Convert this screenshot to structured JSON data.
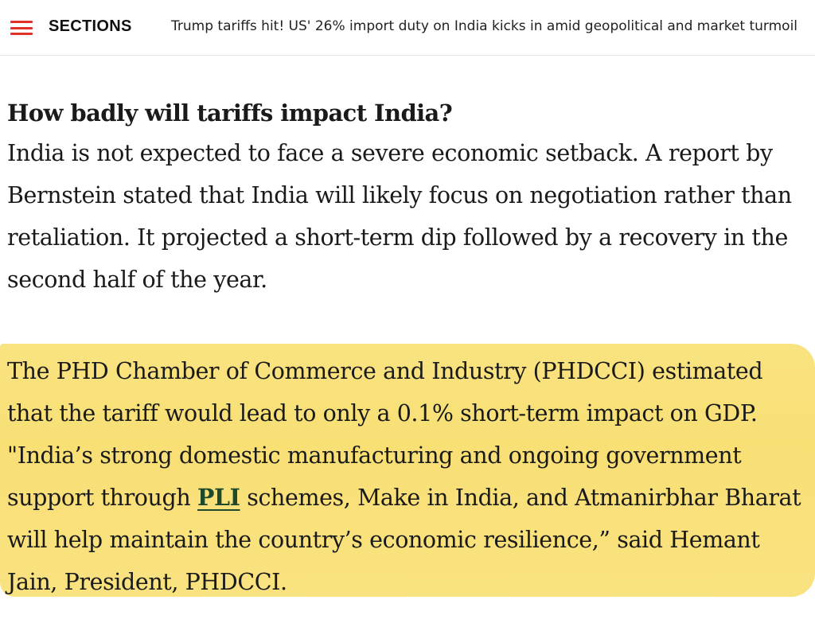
{
  "header": {
    "menu_icon": "hamburger-menu-icon",
    "sections_label": "SECTIONS",
    "headline": "Trump tariffs hit! US' 26% import duty on India kicks in amid geopolitical and market turmoil",
    "accent_color": "#e0312b"
  },
  "article": {
    "subheading": "How badly will tariffs impact India?",
    "paragraph1": "India is not expected to face a severe economic setback. A report by Bernstein stated that India will likely focus on negotiation rather than retaliation. It projected a short-term dip followed by a recovery in the second half of the year.",
    "highlighted": {
      "highlight_color": "#f9e07a",
      "text_before_link": "The PHD Chamber of Commerce and Industry (PHDCCI) estimated that the tariff would lead to only a 0.1% short-term impact on GDP. \"India’s strong domestic manufacturing and ongoing government support through ",
      "link_text": "PLI",
      "text_after_link": " schemes, Make in India, and Atmanirbhar Bharat will help maintain the country’s economic resilience,” said Hemant Jain, President, PHDCCI."
    }
  }
}
